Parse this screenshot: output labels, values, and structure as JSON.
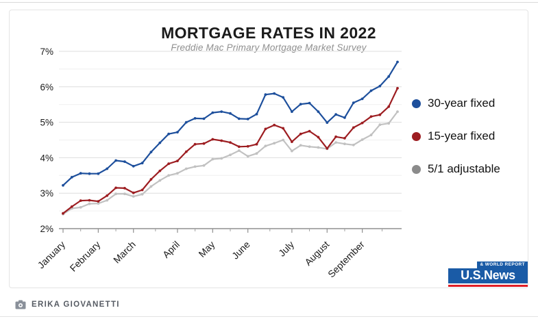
{
  "chart_data": {
    "type": "line",
    "title": "MORTGAGE RATES IN 2022",
    "subtitle": "Freddie Mac Primary Mortgage Market Survey",
    "x_categories": [
      "January",
      "February",
      "March",
      "April",
      "May",
      "June",
      "July",
      "August",
      "September"
    ],
    "month_tick_week_index": [
      0,
      4,
      8,
      13,
      17,
      21,
      26,
      30,
      34
    ],
    "n_weeks": 39,
    "y_axis": {
      "min": 2,
      "max": 7,
      "tick_values": [
        2,
        3,
        4,
        5,
        6,
        7
      ],
      "tick_labels": [
        "2%",
        "3%",
        "4%",
        "5%",
        "6%",
        "7%"
      ]
    },
    "grid": true,
    "legend_position": "right",
    "series": [
      {
        "name": "30-year fixed",
        "color": "#1d4f9c",
        "legend_dot": "#1d4f9c",
        "values": [
          3.22,
          3.45,
          3.56,
          3.55,
          3.55,
          3.69,
          3.92,
          3.89,
          3.76,
          3.85,
          4.16,
          4.42,
          4.67,
          4.72,
          5.0,
          5.11,
          5.1,
          5.27,
          5.3,
          5.25,
          5.1,
          5.09,
          5.23,
          5.78,
          5.81,
          5.7,
          5.3,
          5.51,
          5.54,
          5.3,
          4.99,
          5.22,
          5.13,
          5.55,
          5.66,
          5.89,
          6.02,
          6.29,
          6.7
        ]
      },
      {
        "name": "15-year fixed",
        "color": "#9d1d21",
        "legend_dot": "#9d1d21",
        "values": [
          2.43,
          2.62,
          2.79,
          2.8,
          2.77,
          2.93,
          3.15,
          3.14,
          3.01,
          3.09,
          3.39,
          3.63,
          3.83,
          3.91,
          4.17,
          4.38,
          4.4,
          4.52,
          4.48,
          4.43,
          4.31,
          4.32,
          4.38,
          4.81,
          4.92,
          4.83,
          4.45,
          4.67,
          4.75,
          4.58,
          4.26,
          4.59,
          4.55,
          4.85,
          4.98,
          5.16,
          5.21,
          5.44,
          5.96
        ]
      },
      {
        "name": "5/1 adjustable",
        "color": "#c1c1c1",
        "legend_dot": "#8b8b8b",
        "values": [
          2.41,
          2.57,
          2.6,
          2.7,
          2.71,
          2.8,
          2.98,
          2.98,
          2.91,
          2.97,
          3.19,
          3.36,
          3.5,
          3.56,
          3.69,
          3.75,
          3.78,
          3.96,
          3.98,
          4.08,
          4.2,
          4.04,
          4.12,
          4.33,
          4.41,
          4.5,
          4.19,
          4.35,
          4.31,
          4.29,
          4.25,
          4.43,
          4.39,
          4.36,
          4.51,
          4.64,
          4.93,
          4.97,
          5.3
        ]
      }
    ]
  },
  "logo": {
    "wordmark": "U.S.News",
    "tagline": "& WORLD REPORT",
    "blue": "#1a5ba6",
    "red": "#df1e26"
  },
  "footer": {
    "byline": "ERIKA GIOVANETTI"
  }
}
